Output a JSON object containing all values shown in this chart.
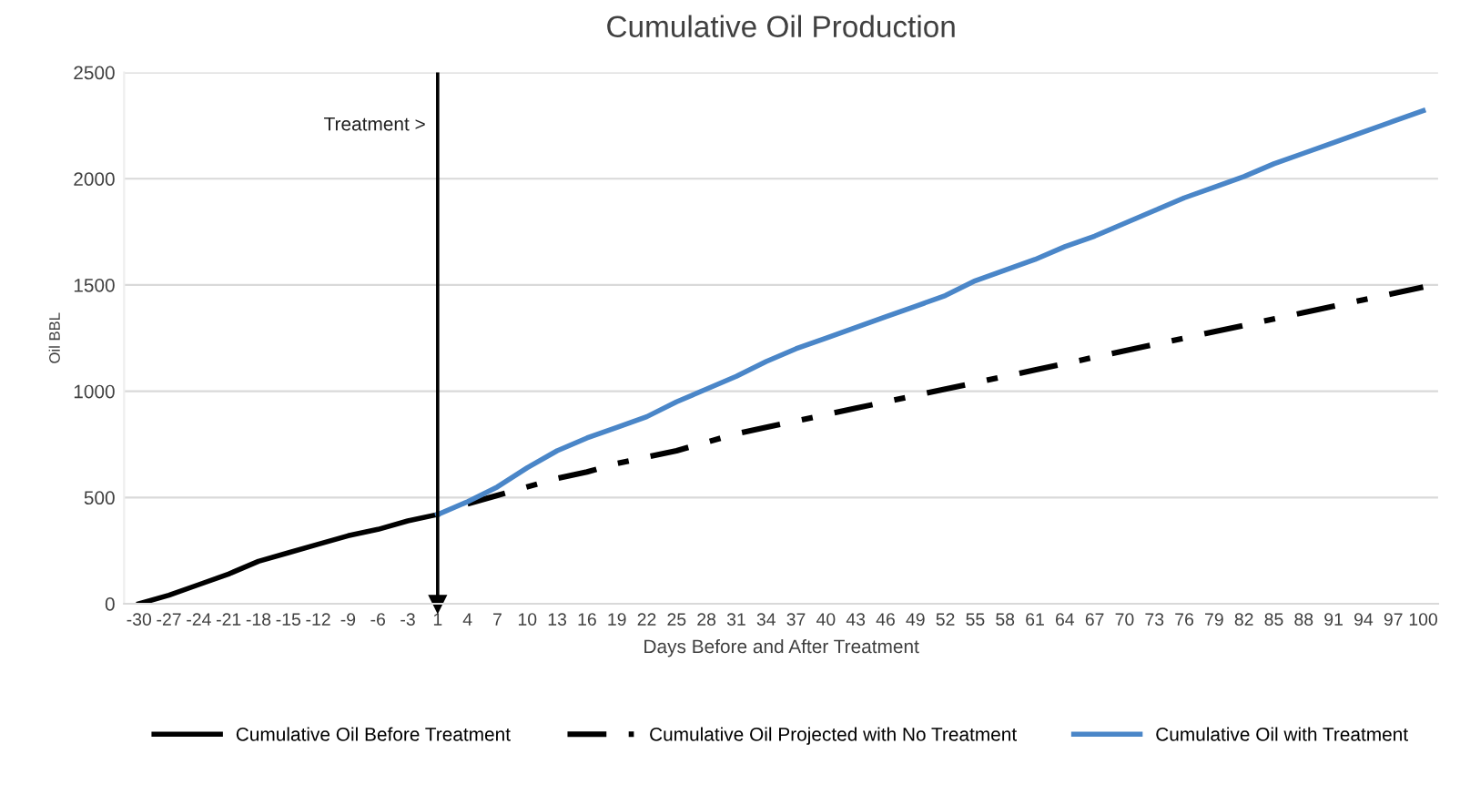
{
  "chart_data": {
    "type": "line",
    "title": "Cumulative Oil Production",
    "xlabel": "Days Before and After Treatment",
    "ylabel": "Oil BBL",
    "categories": [
      "-30",
      "-27",
      "-24",
      "-21",
      "-18",
      "-15",
      "-12",
      "-9",
      "-6",
      "-3",
      "1",
      "4",
      "7",
      "10",
      "13",
      "16",
      "19",
      "22",
      "25",
      "28",
      "31",
      "34",
      "37",
      "40",
      "43",
      "46",
      "49",
      "52",
      "55",
      "58",
      "61",
      "64",
      "67",
      "70",
      "73",
      "76",
      "79",
      "82",
      "85",
      "88",
      "91",
      "94",
      "97",
      "100"
    ],
    "series": [
      {
        "name": "Cumulative Oil Before Treatment",
        "color": "#000000",
        "line_style": "solid",
        "values": [
          0,
          40,
          90,
          140,
          200,
          240,
          280,
          320,
          350,
          390,
          420,
          null,
          null,
          null,
          null,
          null,
          null,
          null,
          null,
          null,
          null,
          null,
          null,
          null,
          null,
          null,
          null,
          null,
          null,
          null,
          null,
          null,
          null,
          null,
          null,
          null,
          null,
          null,
          null,
          null,
          null,
          null,
          null,
          null
        ]
      },
      {
        "name": "Cumulative Oil Projected with No Treatment",
        "color": "#000000",
        "line_style": "dashed",
        "values": [
          null,
          null,
          null,
          null,
          null,
          null,
          null,
          null,
          null,
          null,
          null,
          470,
          510,
          550,
          590,
          620,
          660,
          690,
          720,
          760,
          800,
          830,
          860,
          890,
          920,
          950,
          980,
          1010,
          1040,
          1070,
          1100,
          1130,
          1160,
          1190,
          1220,
          1250,
          1280,
          1310,
          1340,
          1370,
          1400,
          1430,
          1460,
          1490
        ]
      },
      {
        "name": "Cumulative Oil with Treatment",
        "color": "#4a86c8",
        "line_style": "solid",
        "values": [
          null,
          null,
          null,
          null,
          null,
          null,
          null,
          null,
          null,
          null,
          420,
          480,
          550,
          640,
          720,
          780,
          830,
          880,
          950,
          1010,
          1070,
          1140,
          1200,
          1250,
          1300,
          1350,
          1400,
          1450,
          1520,
          1570,
          1620,
          1680,
          1730,
          1790,
          1850,
          1910,
          1960,
          2010,
          2070,
          2120,
          2170,
          2220,
          2270,
          2320
        ]
      }
    ],
    "ylim": [
      0,
      2500
    ],
    "yticks": [
      0,
      500,
      1000,
      1500,
      2000,
      2500
    ],
    "grid": "y",
    "legend": "bottom",
    "ref_lines": [
      {
        "axis": "x",
        "value": "1",
        "label": "Treatment >",
        "color": "#000000"
      }
    ]
  }
}
